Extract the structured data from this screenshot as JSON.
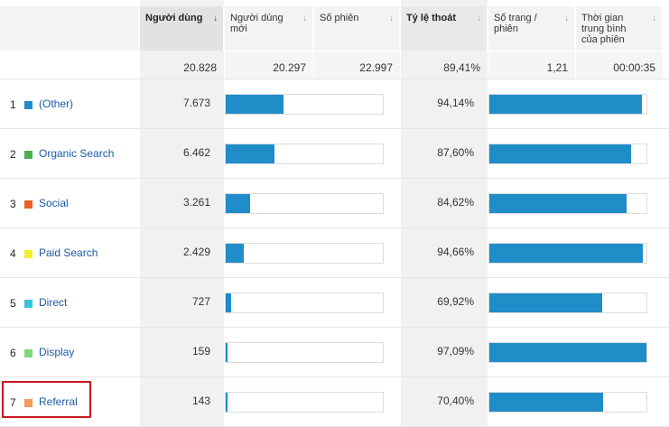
{
  "headers": {
    "users": "Người dùng",
    "new_users": "Người dùng mới",
    "new_users_l1": "Người dùng",
    "new_users_l2": "mới",
    "sessions": "Số phiên",
    "bounce": "Tỷ lệ thoát",
    "pages_l1": "Số trang /",
    "pages_l2": "phiên",
    "duration_l1": "Thời gian",
    "duration_l2": "trung bình",
    "duration_l3": "của phiên",
    "sort_active": "↓",
    "sort_inactive": "↓"
  },
  "totals": {
    "users": "20.828",
    "new_users": "20.297",
    "sessions": "22.997",
    "bounce": "89,41%",
    "pages": "1,21",
    "duration": "00:00:35"
  },
  "rows": [
    {
      "rank": "1",
      "channel": "(Other)",
      "color": "#1f8dc8",
      "users": "7.673",
      "users_share": 0.368,
      "bounce": "94,14%",
      "bounce_value": 0.9414
    },
    {
      "rank": "2",
      "channel": "Organic Search",
      "color": "#4caf50",
      "users": "6.462",
      "users_share": 0.31,
      "bounce": "87,60%",
      "bounce_value": 0.876
    },
    {
      "rank": "3",
      "channel": "Social",
      "color": "#e8632b",
      "users": "3.261",
      "users_share": 0.157,
      "bounce": "84,62%",
      "bounce_value": 0.8462
    },
    {
      "rank": "4",
      "channel": "Paid Search",
      "color": "#eef02a",
      "users": "2.429",
      "users_share": 0.117,
      "bounce": "94,66%",
      "bounce_value": 0.9466
    },
    {
      "rank": "5",
      "channel": "Direct",
      "color": "#35c3dd",
      "users": "727",
      "users_share": 0.035,
      "bounce": "69,92%",
      "bounce_value": 0.6992
    },
    {
      "rank": "6",
      "channel": "Display",
      "color": "#7ed87e",
      "users": "159",
      "users_share": 0.008,
      "bounce": "97,09%",
      "bounce_value": 0.9709
    },
    {
      "rank": "7",
      "channel": "Referral",
      "color": "#f39a5e",
      "users": "143",
      "users_share": 0.007,
      "bounce": "70,40%",
      "bounce_value": 0.704
    }
  ]
}
